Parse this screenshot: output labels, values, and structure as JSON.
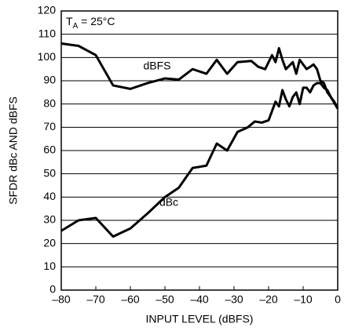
{
  "chart_data": {
    "type": "line",
    "x_label": "INPUT LEVEL (dBFS)",
    "y_label": "SFDR dBc AND dBFS",
    "annotation": [
      "T",
      "A",
      " = 25°C"
    ],
    "xlim": [
      -80,
      0
    ],
    "ylim": [
      0,
      120
    ],
    "xticks": [
      {
        "value": -80,
        "label": "–80"
      },
      {
        "value": -70,
        "label": "–70"
      },
      {
        "value": -60,
        "label": "–60"
      },
      {
        "value": -50,
        "label": "–50"
      },
      {
        "value": -40,
        "label": "–40"
      },
      {
        "value": -30,
        "label": "–30"
      },
      {
        "value": -20,
        "label": "–20"
      },
      {
        "value": -10,
        "label": "–10"
      },
      0
    ],
    "yticks": [
      0,
      10,
      20,
      30,
      40,
      50,
      60,
      70,
      80,
      90,
      100,
      110,
      120
    ],
    "grid": true,
    "series": [
      {
        "name": "dBFS",
        "color": "#000000",
        "x": [
          -80,
          -75,
          -70,
          -65,
          -60,
          -55,
          -50,
          -46,
          -42,
          -38,
          -35,
          -32,
          -29,
          -25,
          -23,
          -21,
          -19,
          -18,
          -17,
          -16,
          -15,
          -13,
          -12,
          -11,
          -10,
          -9,
          -8,
          -7,
          -6,
          -5,
          -4,
          -3,
          -1,
          0
        ],
        "values": [
          106,
          105,
          101,
          88,
          86.5,
          89,
          91,
          90.5,
          95,
          93,
          99,
          93,
          98,
          98.5,
          96,
          95,
          101,
          98,
          104,
          99,
          95,
          98,
          93,
          99,
          97,
          95,
          96,
          97,
          95,
          90,
          89,
          85,
          81,
          78
        ]
      },
      {
        "name": "dBc",
        "color": "#000000",
        "x": [
          -80,
          -75,
          -70,
          -65,
          -60,
          -55,
          -50,
          -46,
          -42,
          -38,
          -35,
          -32,
          -29,
          -26,
          -24,
          -22,
          -20,
          -18,
          -17,
          -16,
          -15,
          -14,
          -13,
          -12,
          -11,
          -10,
          -9,
          -8,
          -7,
          -6,
          -5,
          -4,
          -3,
          -2,
          0
        ],
        "values": [
          25.5,
          30,
          31,
          23,
          26.5,
          33,
          40,
          44,
          52.5,
          53.5,
          63,
          60,
          68,
          70,
          72.5,
          72,
          73,
          81,
          79,
          86,
          82,
          79,
          83,
          85,
          80,
          87,
          87,
          85,
          88,
          89,
          89,
          87,
          86,
          83,
          78
        ]
      }
    ]
  }
}
